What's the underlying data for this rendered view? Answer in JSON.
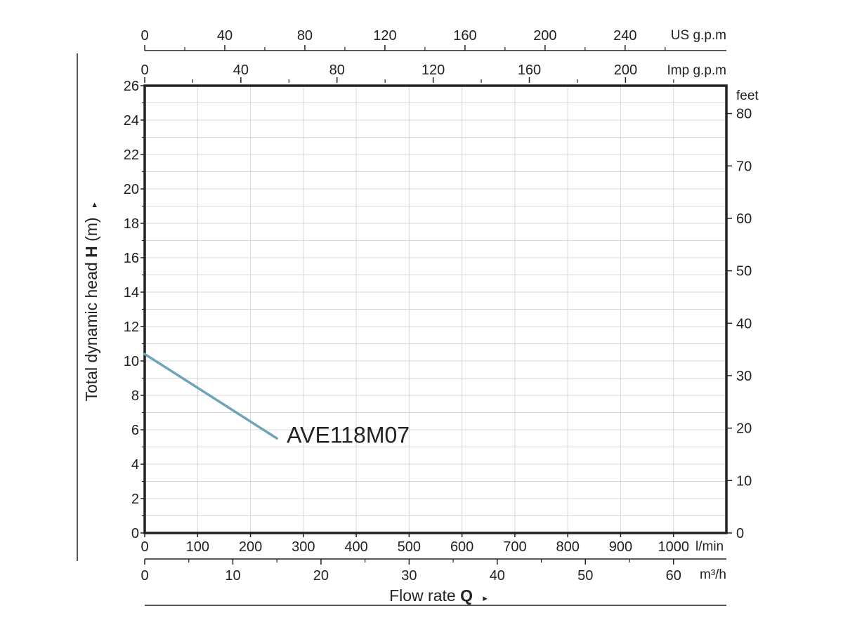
{
  "chart_data": {
    "type": "line",
    "title": "",
    "xlabel": {
      "text": "Flow rate",
      "symbol": "Q",
      "arrow": "▸"
    },
    "ylabel": {
      "text": "Total dynamic head",
      "symbol": "H",
      "unit": "(m)",
      "arrow": "▸"
    },
    "grid": true,
    "colors": {
      "curve": "#6FA3B8",
      "frame": "#222222",
      "grid": "#D8D8D8"
    },
    "x_axes": {
      "lmin": {
        "unit": "l/min",
        "range": [
          0,
          1100
        ],
        "ticks": [
          "0",
          "100",
          "200",
          "300",
          "400",
          "500",
          "600",
          "700",
          "800",
          "900",
          "1000"
        ],
        "tick_values": [
          0,
          100,
          200,
          300,
          400,
          500,
          600,
          700,
          800,
          900,
          1000
        ]
      },
      "m3h": {
        "unit": "m³/h",
        "ticks": [
          "0",
          "10",
          "20",
          "30",
          "40",
          "50",
          "60"
        ],
        "tick_values": [
          0,
          10,
          20,
          30,
          40,
          50,
          60
        ]
      },
      "us_gpm": {
        "unit": "US g.p.m",
        "ticks": [
          "0",
          "40",
          "80",
          "120",
          "160",
          "200",
          "240"
        ],
        "tick_values": [
          0,
          40,
          80,
          120,
          160,
          200,
          240
        ]
      },
      "imp_gpm": {
        "unit": "Imp g.p.m",
        "ticks": [
          "0",
          "40",
          "80",
          "120",
          "160",
          "200"
        ],
        "tick_values": [
          0,
          40,
          80,
          120,
          160,
          200
        ]
      }
    },
    "y_axes": {
      "m": {
        "range": [
          0,
          26
        ],
        "ticks": [
          "0",
          "2",
          "4",
          "6",
          "8",
          "10",
          "12",
          "14",
          "16",
          "18",
          "20",
          "22",
          "24",
          "26"
        ],
        "tick_values": [
          0,
          2,
          4,
          6,
          8,
          10,
          12,
          14,
          16,
          18,
          20,
          22,
          24,
          26
        ]
      },
      "feet": {
        "unit": "feet",
        "ticks": [
          "0",
          "10",
          "20",
          "30",
          "40",
          "50",
          "60",
          "70",
          "80"
        ],
        "tick_values": [
          0,
          10,
          20,
          30,
          40,
          50,
          60,
          70,
          80
        ]
      }
    },
    "series": [
      {
        "name": "AVE118M07",
        "x_unit": "l/min",
        "y_unit": "m",
        "x": [
          0,
          250
        ],
        "y": [
          10.4,
          5.5
        ]
      }
    ]
  }
}
